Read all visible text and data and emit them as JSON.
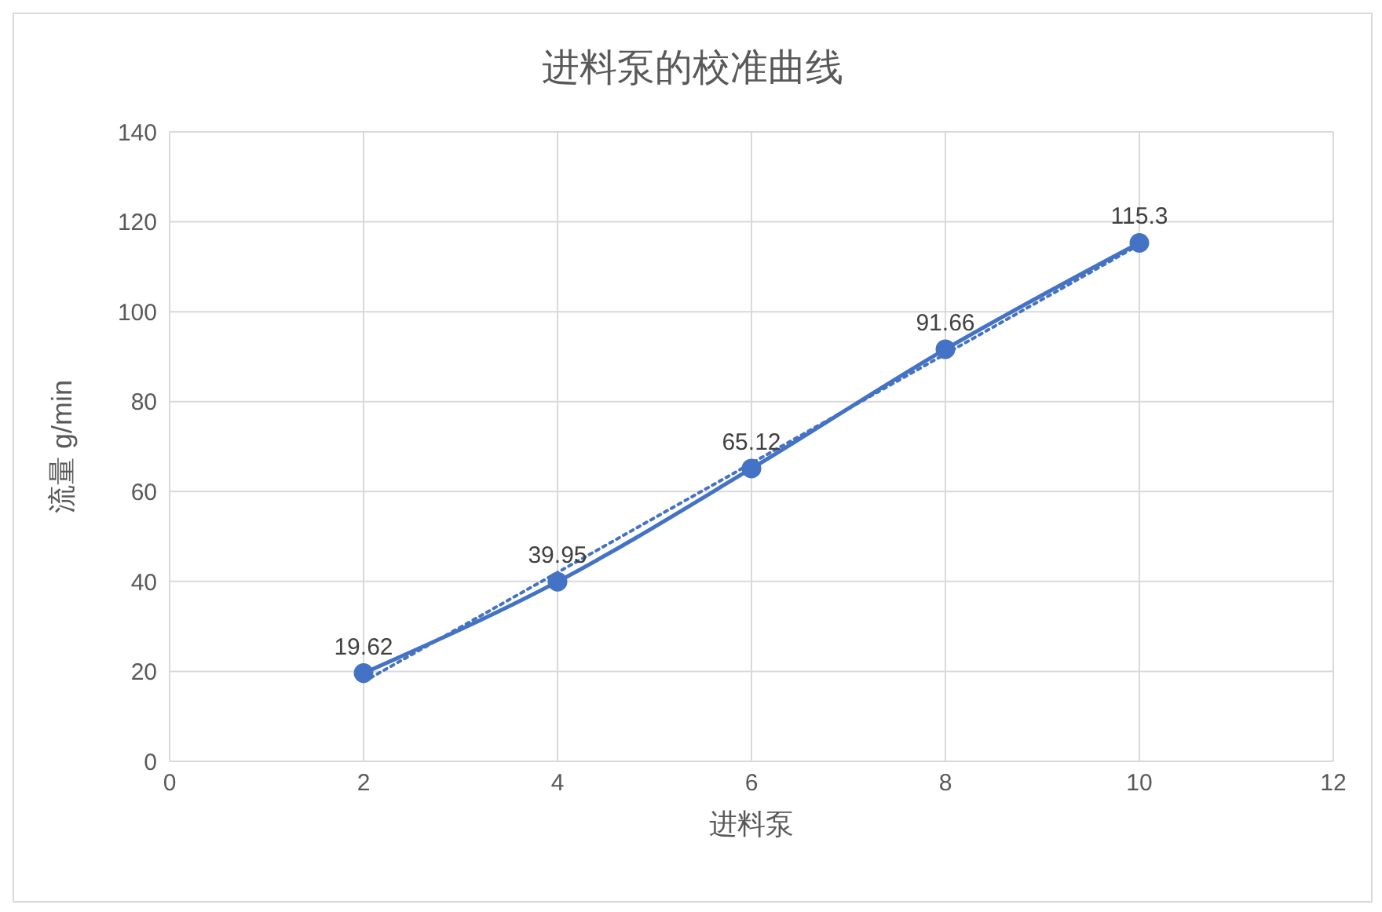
{
  "chart_data": {
    "type": "line",
    "title": "进料泵的校准曲线",
    "xlabel": "进料泵",
    "ylabel": "流量 g/min",
    "x": [
      2,
      4,
      6,
      8,
      10
    ],
    "series": [
      {
        "color": "#4472c4",
        "values": [
          19.62,
          39.95,
          65.12,
          91.66,
          115.3
        ],
        "value_labels": [
          "19.62",
          "39.95",
          "65.12",
          "91.66",
          "115.3"
        ],
        "marker": "circle",
        "line_style": "solid"
      },
      {
        "color": "#4472c4",
        "x": [
          2,
          10
        ],
        "values": [
          17.7,
          114.9
        ],
        "marker": "none",
        "line_style": "dotted"
      }
    ],
    "xlim": [
      0,
      12
    ],
    "xticks": [
      0,
      2,
      4,
      6,
      8,
      10,
      12
    ],
    "ylim": [
      0,
      140
    ],
    "yticks": [
      0,
      20,
      40,
      60,
      80,
      100,
      120,
      140
    ],
    "grid": true,
    "legend": false
  }
}
